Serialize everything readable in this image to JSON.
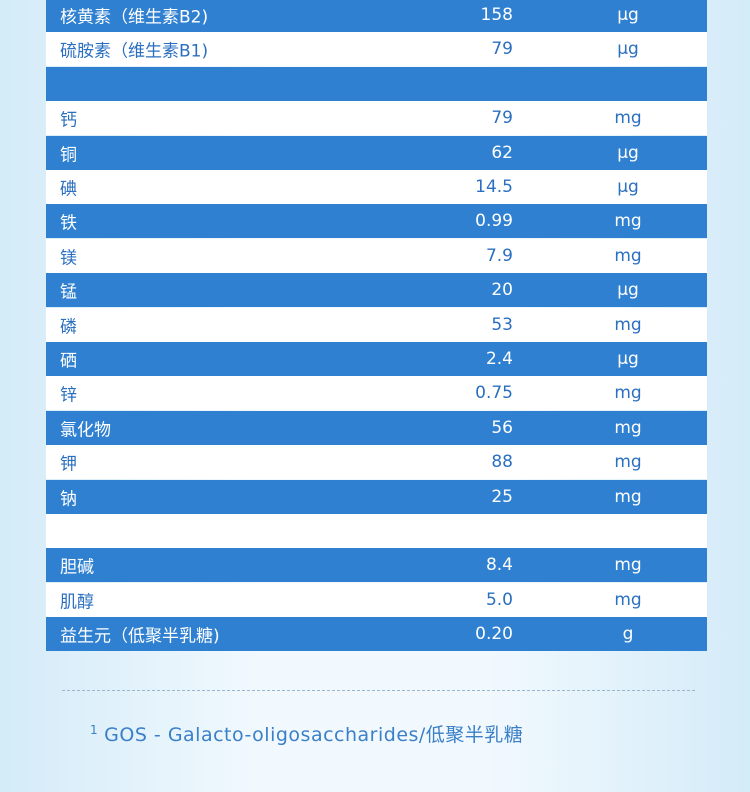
{
  "table": {
    "groups": [
      {
        "rows": [
          [
            "核黄素（维生素B2)",
            "158",
            "μg"
          ],
          [
            "硫胺素（维生素B1)",
            "79",
            "μg"
          ]
        ]
      },
      {
        "rows": [
          [
            "钙",
            "79",
            "mg"
          ],
          [
            "铜",
            "62",
            "μg"
          ],
          [
            "碘",
            "14.5",
            "μg"
          ],
          [
            "铁",
            "0.99",
            "mg"
          ],
          [
            "镁",
            "7.9",
            "mg"
          ],
          [
            "锰",
            "20",
            "μg"
          ],
          [
            "磷",
            "53",
            "mg"
          ],
          [
            "硒",
            "2.4",
            "μg"
          ],
          [
            "锌",
            "0.75",
            "mg"
          ],
          [
            "氯化物",
            "56",
            "mg"
          ],
          [
            "钾",
            "88",
            "mg"
          ],
          [
            "钠",
            "25",
            "mg"
          ]
        ]
      },
      {
        "rows": [
          [
            "胆碱",
            "8.4",
            "mg"
          ],
          [
            "肌醇",
            "5.0",
            "mg"
          ],
          [
            "益生元（低聚半乳糖)",
            "0.20",
            "g"
          ]
        ]
      }
    ]
  },
  "footnote": {
    "marker": "1",
    "text": "GOS - Galacto-oligosaccharides/低聚半乳糖"
  }
}
